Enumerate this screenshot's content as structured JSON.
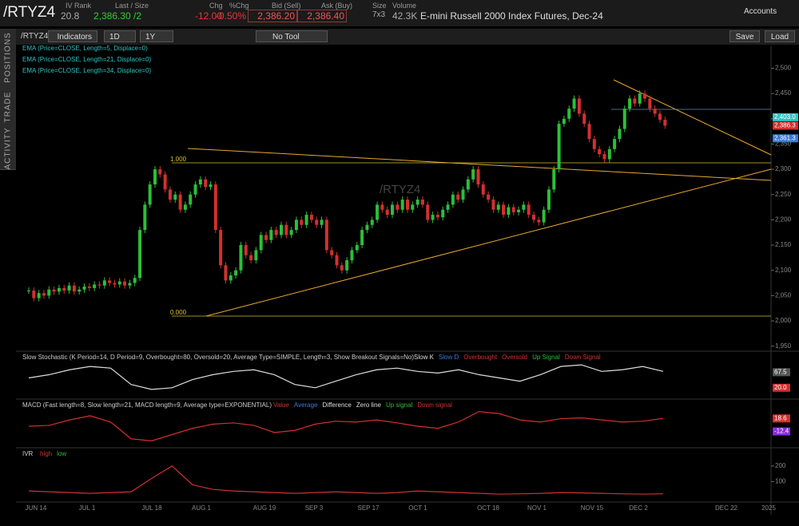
{
  "header": {
    "symbol": "/RTYZ4",
    "iv_rank_label": "IV Rank",
    "iv_rank": "20.8",
    "last_label": "Last / Size",
    "last": "2,386.30 /2",
    "chg_label": "Chg",
    "chg": "-12.00",
    "pct_chg_label": "%Chg",
    "pct_chg": "-0.50%",
    "bid_label": "Bid (Sell)",
    "bid": "2,386.20",
    "ask_label": "Ask (Buy)",
    "ask": "2,386.40",
    "size_label": "Size",
    "size": "7x3",
    "volume_label": "Volume",
    "volume": "42.3K",
    "description": "E-mini Russell 2000 Index Futures, Dec-24",
    "accounts": "Accounts"
  },
  "toolbar": {
    "symbol": "/RTYZ4",
    "indicators": "Indicators",
    "aggregation": "1D",
    "range": "1Y",
    "drawing": "No Tool",
    "save": "Save",
    "load": "Load"
  },
  "side_tabs": [
    "POSITIONS",
    "TRADE",
    "ACTIVITY"
  ],
  "chart": {
    "watermark": "/RTYZ4",
    "fib_top": "1.000",
    "fib_bottom": "0.000",
    "studies": [
      {
        "name": "EMA (Price=CLOSE, Length=5, Displace=0)",
        "color": "#2ec4c4"
      },
      {
        "name": "EMA (Price=CLOSE, Length=21, Displace=0)",
        "color": "#2ec4c4"
      },
      {
        "name": "EMA (Price=CLOSE, Length=34, Displace=0)",
        "color": "#2ec4c4"
      }
    ],
    "up_color": "#2bbf3a",
    "down_color": "#d23030",
    "ylim": [
      1940,
      2545
    ],
    "yticks": [
      {
        "value": 1950,
        "label": "1,950"
      },
      {
        "value": 2000,
        "label": "2,000"
      },
      {
        "value": 2050,
        "label": "2,050"
      },
      {
        "value": 2100,
        "label": "2,100"
      },
      {
        "value": 2150,
        "label": "2,150"
      },
      {
        "value": 2200,
        "label": "2,200"
      },
      {
        "value": 2250,
        "label": "2,250"
      },
      {
        "value": 2300,
        "label": "2,300"
      },
      {
        "value": 2350,
        "label": "2,350"
      },
      {
        "value": 2400,
        "label": "2,400"
      },
      {
        "value": 2450,
        "label": "2,450"
      },
      {
        "value": 2500,
        "label": "2,500"
      }
    ],
    "price_labels": [
      {
        "value": 2403.0,
        "label": "2,403.0",
        "color": "#2ec4c4"
      },
      {
        "value": 2386.3,
        "label": "2,386.3",
        "color": "#d23030"
      },
      {
        "value": 2361.3,
        "label": "2,361.3",
        "color": "#3a7ad8"
      }
    ],
    "closes": [
      2060,
      2045,
      2055,
      2050,
      2062,
      2058,
      2065,
      2060,
      2070,
      2058,
      2062,
      2068,
      2065,
      2072,
      2070,
      2080,
      2075,
      2072,
      2078,
      2070,
      2075,
      2085,
      2180,
      2230,
      2270,
      2300,
      2290,
      2260,
      2240,
      2250,
      2220,
      2230,
      2250,
      2270,
      2280,
      2265,
      2270,
      2180,
      2110,
      2080,
      2090,
      2100,
      2150,
      2130,
      2120,
      2140,
      2170,
      2160,
      2180,
      2170,
      2190,
      2170,
      2180,
      2200,
      2190,
      2210,
      2200,
      2190,
      2200,
      2140,
      2130,
      2110,
      2100,
      2120,
      2140,
      2150,
      2180,
      2190,
      2200,
      2230,
      2220,
      2210,
      2230,
      2220,
      2240,
      2220,
      2230,
      2240,
      2230,
      2200,
      2210,
      2205,
      2220,
      2230,
      2250,
      2240,
      2260,
      2280,
      2300,
      2270,
      2250,
      2240,
      2220,
      2230,
      2210,
      2225,
      2215,
      2220,
      2230,
      2210,
      2200,
      2195,
      2220,
      2260,
      2300,
      2390,
      2400,
      2420,
      2440,
      2410,
      2390,
      2360,
      2340,
      2330,
      2320,
      2340,
      2360,
      2380,
      2420,
      2440,
      2430,
      2450,
      2440,
      2420,
      2410,
      2398,
      2386.3
    ],
    "xlabels": [
      "JUN 14",
      "JUL 1",
      "JUL 18",
      "AUG 1",
      "AUG 19",
      "SEP 3",
      "SEP 17",
      "OCT 1",
      "OCT 18",
      "NOV 1",
      "NOV 15",
      "DEC 2",
      "DEC 22",
      "2025"
    ]
  },
  "stochastic": {
    "title": "Slow Stochastic (K Period=14, D Period=9, Overbought=80, Oversold=20, Average Type=SIMPLE, Length=3, Show Breakout Signals=No)",
    "legend": [
      {
        "name": "Slow K",
        "color": "#dddddd"
      },
      {
        "name": "Slow D",
        "color": "#3a7ad8"
      },
      {
        "name": "Overbought",
        "color": "#d23030"
      },
      {
        "name": "Oversold",
        "color": "#d23030"
      },
      {
        "name": "Up Signal",
        "color": "#2bbf3a"
      },
      {
        "name": "Down Signal",
        "color": "#d23030"
      }
    ],
    "ylim": [
      0,
      100
    ],
    "values": [
      50,
      60,
      75,
      85,
      80,
      30,
      15,
      20,
      45,
      60,
      70,
      75,
      60,
      30,
      20,
      40,
      60,
      75,
      80,
      70,
      65,
      75,
      60,
      50,
      40,
      60,
      85,
      90,
      70,
      75,
      85,
      70
    ],
    "right_labels": [
      {
        "value": 67.5,
        "label": "67.5",
        "color": "#555555"
      },
      {
        "value": 20,
        "label": "20.0",
        "color": "#d23030"
      }
    ]
  },
  "macd": {
    "title": "MACD (Fast length=8, Slow length=21, MACD length=9, Average type=EXPONENTIAL)",
    "legend": [
      {
        "name": "Value",
        "color": "#d23030"
      },
      {
        "name": "Average",
        "color": "#3a7ad8"
      },
      {
        "name": "Difference",
        "color": "#dddddd"
      },
      {
        "name": "Zero line",
        "color": "#dddddd"
      },
      {
        "name": "Up signal",
        "color": "#2bbf3a"
      },
      {
        "name": "Down signal",
        "color": "#d23030"
      }
    ],
    "ylim": [
      -40,
      40
    ],
    "values": [
      0,
      2,
      15,
      25,
      10,
      -30,
      -35,
      -20,
      -5,
      5,
      8,
      2,
      -15,
      -10,
      5,
      12,
      10,
      15,
      8,
      0,
      -5,
      10,
      35,
      30,
      15,
      10,
      18,
      20,
      15,
      10,
      12,
      18.6
    ],
    "right_labels": [
      {
        "value": 18.6,
        "label": "18.6",
        "color": "#d23030"
      },
      {
        "value": -12.4,
        "label": "-12.4",
        "color": "#8a2be2"
      }
    ]
  },
  "ivr": {
    "title": "IVR",
    "legend": [
      {
        "name": "high",
        "color": "#d23030"
      },
      {
        "name": "low",
        "color": "#2bbf3a"
      }
    ],
    "ylim": [
      0,
      250
    ],
    "yticks": [
      100,
      200
    ],
    "values": [
      40,
      35,
      30,
      25,
      30,
      35,
      120,
      200,
      80,
      50,
      40,
      35,
      30,
      25,
      30,
      35,
      30,
      25,
      30,
      40,
      35,
      30,
      25,
      20,
      22,
      25,
      30,
      28,
      25,
      22,
      20,
      22
    ]
  }
}
